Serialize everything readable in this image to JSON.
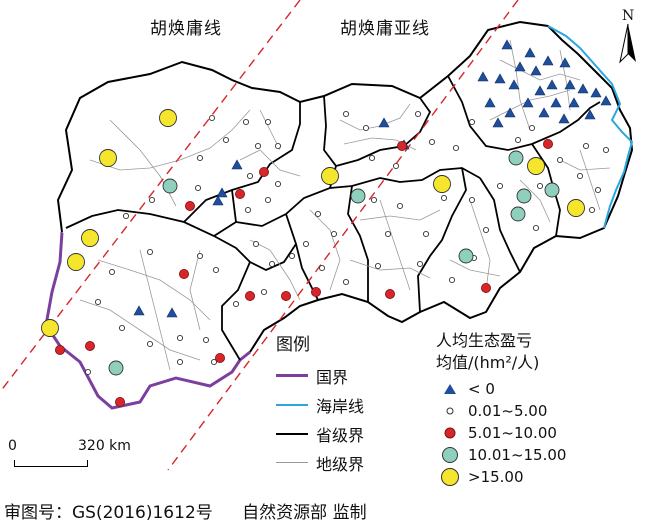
{
  "titles": {
    "huanyong_line": "胡焕庸线",
    "huanyong_ya_line": "胡焕庸亚线"
  },
  "north_label": "N",
  "legend": {
    "heading": "图例",
    "items": [
      {
        "label": "国界",
        "color": "#7b3fa0"
      },
      {
        "label": "海岸线",
        "color": "#29a8e0"
      },
      {
        "label": "省级界",
        "color": "#000000"
      },
      {
        "label": "地级界",
        "color": "#9a9a9a"
      }
    ]
  },
  "value_legend": {
    "heading_line1": "人均生态盈亏",
    "heading_line2": "均值/(hm²/人)",
    "classes": [
      {
        "label": "< 0",
        "symbol": "triangle",
        "color": "#1f4e9c"
      },
      {
        "label": "0.01~5.00",
        "symbol": "circle-small",
        "color": "#ffffff"
      },
      {
        "label": "5.01~10.00",
        "symbol": "circle-medium",
        "color": "#d7262a"
      },
      {
        "label": "10.01~15.00",
        "symbol": "circle-large",
        "color": "#8fcfbe"
      },
      {
        "label": ">15.00",
        "symbol": "circle-xlarge",
        "color": "#f5e62d"
      }
    ]
  },
  "scale": {
    "start": "0",
    "end": "320 km"
  },
  "footer": {
    "review_number": "审图号：GS(2016)1612号",
    "supervisor": "自然资源部 监制"
  }
}
